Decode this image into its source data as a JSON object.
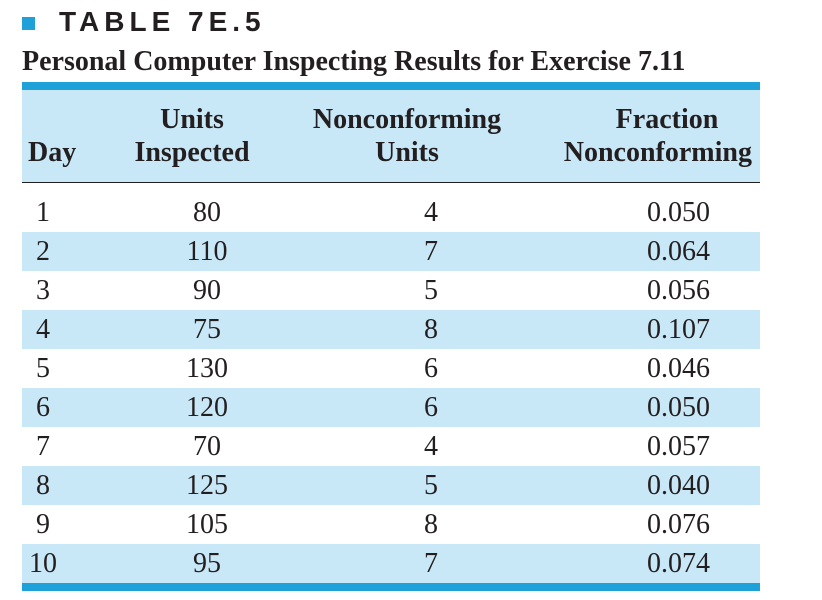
{
  "table": {
    "number_label": "TABLE 7E.5",
    "caption": "Personal Computer Inspecting Results for Exercise 7.11",
    "accent_color": "#1ea0d8",
    "shade_color": "#c9e8f7",
    "headers": {
      "day": "Day",
      "units_line1": "Units",
      "units_line2": "Inspected",
      "nonconforming_line1": "Nonconforming",
      "nonconforming_line2": "Units",
      "fraction_line1": "Fraction",
      "fraction_line2": "Nonconforming"
    },
    "rows": [
      {
        "day": "1",
        "units_inspected": "80",
        "nonconforming_units": "4",
        "fraction_nonconforming": "0.050"
      },
      {
        "day": "2",
        "units_inspected": "110",
        "nonconforming_units": "7",
        "fraction_nonconforming": "0.064"
      },
      {
        "day": "3",
        "units_inspected": "90",
        "nonconforming_units": "5",
        "fraction_nonconforming": "0.056"
      },
      {
        "day": "4",
        "units_inspected": "75",
        "nonconforming_units": "8",
        "fraction_nonconforming": "0.107"
      },
      {
        "day": "5",
        "units_inspected": "130",
        "nonconforming_units": "6",
        "fraction_nonconforming": "0.046"
      },
      {
        "day": "6",
        "units_inspected": "120",
        "nonconforming_units": "6",
        "fraction_nonconforming": "0.050"
      },
      {
        "day": "7",
        "units_inspected": "70",
        "nonconforming_units": "4",
        "fraction_nonconforming": "0.057"
      },
      {
        "day": "8",
        "units_inspected": "125",
        "nonconforming_units": "5",
        "fraction_nonconforming": "0.040"
      },
      {
        "day": "9",
        "units_inspected": "105",
        "nonconforming_units": "8",
        "fraction_nonconforming": "0.076"
      },
      {
        "day": "10",
        "units_inspected": "95",
        "nonconforming_units": "7",
        "fraction_nonconforming": "0.074"
      }
    ]
  }
}
